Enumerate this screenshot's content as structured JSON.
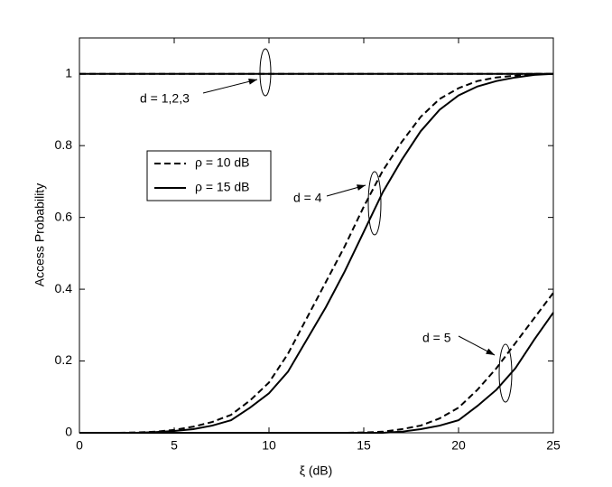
{
  "chart_data": {
    "type": "line",
    "xlabel": "ξ (dB)",
    "ylabel": "Access Probability",
    "x": [
      0,
      1,
      2,
      3,
      4,
      5,
      6,
      7,
      8,
      9,
      10,
      11,
      12,
      13,
      14,
      15,
      16,
      17,
      18,
      19,
      20,
      21,
      22,
      23,
      24,
      25
    ],
    "series": [
      {
        "name": "ρ = 10 dB",
        "color": "#000000",
        "dashed": true,
        "values": [
          [
            1,
            1,
            1,
            1,
            1,
            1,
            1,
            1,
            1,
            1,
            1,
            1,
            1,
            1,
            1,
            1,
            1,
            1,
            1,
            1,
            1,
            1,
            1,
            1,
            1,
            1
          ],
          [
            0,
            0,
            0,
            0.001,
            0.003,
            0.008,
            0.017,
            0.03,
            0.05,
            0.09,
            0.14,
            0.22,
            0.32,
            0.42,
            0.52,
            0.63,
            0.73,
            0.81,
            0.88,
            0.93,
            0.96,
            0.98,
            0.99,
            0.995,
            1,
            1
          ],
          [
            0,
            0,
            0,
            0,
            0,
            0,
            0,
            0,
            0,
            0,
            0,
            0,
            0,
            0,
            0,
            0.001,
            0.003,
            0.01,
            0.02,
            0.04,
            0.07,
            0.12,
            0.18,
            0.25,
            0.32,
            0.39
          ]
        ]
      },
      {
        "name": "ρ = 15 dB",
        "color": "#000000",
        "dashed": false,
        "values": [
          [
            1,
            1,
            1,
            1,
            1,
            1,
            1,
            1,
            1,
            1,
            1,
            1,
            1,
            1,
            1,
            1,
            1,
            1,
            1,
            1,
            1,
            1,
            1,
            1,
            1,
            1
          ],
          [
            0,
            0,
            0,
            0,
            0.002,
            0.005,
            0.01,
            0.02,
            0.035,
            0.07,
            0.11,
            0.17,
            0.26,
            0.35,
            0.45,
            0.56,
            0.67,
            0.76,
            0.84,
            0.9,
            0.94,
            0.965,
            0.98,
            0.99,
            0.997,
            1
          ],
          [
            0,
            0,
            0,
            0,
            0,
            0,
            0,
            0,
            0,
            0,
            0,
            0,
            0,
            0,
            0,
            0,
            0,
            0.003,
            0.01,
            0.02,
            0.035,
            0.075,
            0.12,
            0.18,
            0.26,
            0.335
          ]
        ]
      }
    ],
    "annotations": [
      "d = 1,2,3",
      "d = 4",
      "d = 5"
    ],
    "xlim": [
      0,
      25
    ],
    "xticks": [
      0,
      5,
      10,
      15,
      20,
      25
    ],
    "ylim": [
      0,
      1.1
    ],
    "yticks": [
      0,
      0.2,
      0.4,
      0.6,
      0.8,
      1
    ],
    "legend": "upper left"
  }
}
